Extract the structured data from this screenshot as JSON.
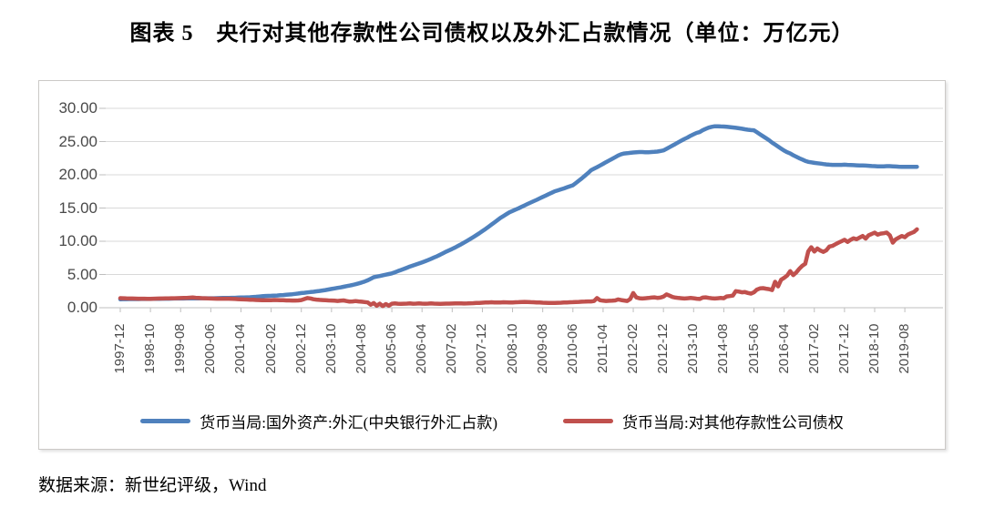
{
  "page": {
    "title": "图表 5　央行对其他存款性公司债权以及外汇占款情况（单位：万亿元）",
    "source": "数据来源：新世纪评级，Wind"
  },
  "chart_data": {
    "type": "line",
    "title": "图表 5　央行对其他存款性公司债权以及外汇占款情况",
    "unit": "万亿元",
    "xlabel": "",
    "ylabel": "",
    "ylim": [
      0,
      30
    ],
    "grid": "horizontal",
    "legend_position": "bottom",
    "x_start": "1997-12",
    "x_interval": "monthly",
    "x_tick_labels": [
      "1997-12",
      "1998-10",
      "1999-08",
      "2000-06",
      "2001-04",
      "2002-02",
      "2002-12",
      "2003-10",
      "2004-08",
      "2005-06",
      "2006-04",
      "2007-02",
      "2007-12",
      "2008-10",
      "2009-08",
      "2010-06",
      "2011-04",
      "2012-02",
      "2012-12",
      "2013-10",
      "2014-08",
      "2015-06",
      "2016-04",
      "2017-02",
      "2017-12",
      "2018-10",
      "2019-08"
    ],
    "y_ticks": [
      {
        "value": 0,
        "label": "0.00"
      },
      {
        "value": 5,
        "label": "5.00"
      },
      {
        "value": 10,
        "label": "10.00"
      },
      {
        "value": 15,
        "label": "15.00"
      },
      {
        "value": 20,
        "label": "20.00"
      },
      {
        "value": 25,
        "label": "25.00"
      },
      {
        "value": 30,
        "label": "30.00"
      }
    ],
    "series": [
      {
        "name": "货币当局:国外资产:外汇(中央银行外汇占款)",
        "color": "#4F81BD",
        "values": [
          1.28,
          1.29,
          1.29,
          1.3,
          1.3,
          1.3,
          1.3,
          1.31,
          1.31,
          1.32,
          1.32,
          1.33,
          1.34,
          1.34,
          1.35,
          1.36,
          1.36,
          1.37,
          1.38,
          1.38,
          1.39,
          1.39,
          1.4,
          1.4,
          1.41,
          1.41,
          1.41,
          1.42,
          1.42,
          1.42,
          1.42,
          1.43,
          1.44,
          1.45,
          1.46,
          1.47,
          1.48,
          1.49,
          1.5,
          1.52,
          1.53,
          1.55,
          1.56,
          1.58,
          1.61,
          1.65,
          1.69,
          1.73,
          1.77,
          1.78,
          1.8,
          1.82,
          1.84,
          1.87,
          1.9,
          1.94,
          1.98,
          2.03,
          2.08,
          2.14,
          2.21,
          2.25,
          2.3,
          2.35,
          2.4,
          2.46,
          2.52,
          2.59,
          2.66,
          2.74,
          2.82,
          2.9,
          2.98,
          3.06,
          3.15,
          3.24,
          3.33,
          3.43,
          3.53,
          3.66,
          3.8,
          3.95,
          4.12,
          4.35,
          4.59,
          4.68,
          4.77,
          4.87,
          4.97,
          5.07,
          5.17,
          5.33,
          5.5,
          5.67,
          5.84,
          6.02,
          6.21,
          6.36,
          6.51,
          6.66,
          6.82,
          6.99,
          7.17,
          7.36,
          7.56,
          7.76,
          7.97,
          8.2,
          8.44,
          8.64,
          8.85,
          9.07,
          9.31,
          9.56,
          9.82,
          10.08,
          10.35,
          10.63,
          10.92,
          11.21,
          11.52,
          11.84,
          12.17,
          12.51,
          12.84,
          13.18,
          13.52,
          13.8,
          14.08,
          14.35,
          14.56,
          14.77,
          14.96,
          15.18,
          15.4,
          15.62,
          15.82,
          16.03,
          16.23,
          16.45,
          16.67,
          16.88,
          17.09,
          17.3,
          17.52,
          17.66,
          17.81,
          17.95,
          18.11,
          18.27,
          18.43,
          18.77,
          19.12,
          19.48,
          19.86,
          20.26,
          20.68,
          20.92,
          21.15,
          21.4,
          21.65,
          21.9,
          22.15,
          22.4,
          22.65,
          22.9,
          23.1,
          23.2,
          23.24,
          23.3,
          23.36,
          23.4,
          23.42,
          23.42,
          23.4,
          23.4,
          23.42,
          23.45,
          23.5,
          23.58,
          23.67,
          23.9,
          24.15,
          24.4,
          24.64,
          24.9,
          25.15,
          25.4,
          25.62,
          25.88,
          26.1,
          26.3,
          26.43,
          26.7,
          26.9,
          27.1,
          27.22,
          27.3,
          27.3,
          27.28,
          27.26,
          27.22,
          27.18,
          27.12,
          27.07,
          27.0,
          26.93,
          26.85,
          26.78,
          26.72,
          26.7,
          26.4,
          26.1,
          25.8,
          25.5,
          25.2,
          24.85,
          24.55,
          24.25,
          23.95,
          23.65,
          23.4,
          23.2,
          22.95,
          22.72,
          22.5,
          22.3,
          22.1,
          21.94,
          21.88,
          21.8,
          21.74,
          21.68,
          21.62,
          21.56,
          21.52,
          21.5,
          21.5,
          21.5,
          21.5,
          21.52,
          21.5,
          21.48,
          21.45,
          21.42,
          21.4,
          21.4,
          21.38,
          21.35,
          21.32,
          21.3,
          21.28,
          21.26,
          21.28,
          21.3,
          21.3,
          21.28,
          21.25,
          21.22,
          21.2,
          21.2,
          21.2,
          21.2,
          21.2,
          21.2
        ]
      },
      {
        "name": "货币当局:对其他存款性公司债权",
        "color": "#C0504D",
        "values": [
          1.44,
          1.42,
          1.4,
          1.39,
          1.38,
          1.37,
          1.36,
          1.35,
          1.35,
          1.34,
          1.34,
          1.35,
          1.37,
          1.38,
          1.39,
          1.4,
          1.41,
          1.42,
          1.43,
          1.44,
          1.45,
          1.46,
          1.48,
          1.51,
          1.54,
          1.5,
          1.47,
          1.44,
          1.42,
          1.4,
          1.38,
          1.37,
          1.36,
          1.35,
          1.35,
          1.35,
          1.35,
          1.33,
          1.31,
          1.29,
          1.27,
          1.25,
          1.23,
          1.21,
          1.19,
          1.17,
          1.15,
          1.14,
          1.13,
          1.12,
          1.14,
          1.16,
          1.15,
          1.13,
          1.12,
          1.1,
          1.09,
          1.08,
          1.08,
          1.1,
          1.15,
          1.3,
          1.45,
          1.4,
          1.28,
          1.22,
          1.18,
          1.15,
          1.12,
          1.1,
          1.08,
          1.05,
          1.02,
          1.05,
          1.1,
          1.0,
          0.92,
          0.95,
          1.0,
          0.95,
          0.9,
          0.85,
          0.8,
          0.45,
          0.7,
          0.3,
          0.6,
          0.25,
          0.55,
          0.3,
          0.6,
          0.65,
          0.6,
          0.58,
          0.6,
          0.62,
          0.64,
          0.6,
          0.62,
          0.64,
          0.62,
          0.6,
          0.62,
          0.64,
          0.62,
          0.6,
          0.58,
          0.6,
          0.62,
          0.62,
          0.63,
          0.65,
          0.66,
          0.65,
          0.63,
          0.65,
          0.67,
          0.69,
          0.71,
          0.73,
          0.76,
          0.78,
          0.8,
          0.82,
          0.8,
          0.78,
          0.8,
          0.82,
          0.81,
          0.79,
          0.8,
          0.82,
          0.84,
          0.86,
          0.88,
          0.86,
          0.84,
          0.82,
          0.8,
          0.78,
          0.76,
          0.74,
          0.72,
          0.71,
          0.72,
          0.74,
          0.76,
          0.78,
          0.8,
          0.82,
          0.84,
          0.86,
          0.88,
          0.9,
          0.92,
          0.94,
          0.95,
          1.0,
          1.45,
          1.12,
          1.05,
          1.02,
          1.04,
          1.06,
          1.1,
          1.25,
          1.15,
          1.08,
          1.02,
          1.3,
          2.2,
          1.55,
          1.42,
          1.38,
          1.42,
          1.46,
          1.52,
          1.56,
          1.48,
          1.52,
          1.67,
          2.0,
          1.82,
          1.62,
          1.52,
          1.46,
          1.42,
          1.38,
          1.42,
          1.46,
          1.42,
          1.36,
          1.31,
          1.52,
          1.56,
          1.48,
          1.42,
          1.38,
          1.42,
          1.46,
          1.42,
          1.7,
          1.76,
          1.82,
          2.5,
          2.42,
          2.32,
          2.36,
          2.22,
          2.12,
          2.32,
          2.72,
          2.9,
          2.95,
          2.86,
          2.8,
          2.66,
          3.9,
          3.2,
          4.2,
          4.5,
          4.85,
          5.5,
          4.9,
          5.3,
          5.85,
          6.3,
          6.6,
          8.47,
          9.1,
          8.45,
          8.9,
          8.6,
          8.4,
          8.65,
          9.2,
          9.3,
          9.55,
          9.8,
          10.0,
          10.22,
          9.9,
          10.2,
          10.45,
          10.3,
          10.55,
          10.8,
          10.4,
          10.9,
          11.1,
          11.3,
          11.0,
          11.15,
          11.2,
          11.3,
          10.9,
          9.8,
          10.3,
          10.55,
          10.8,
          10.6,
          11.0,
          11.2,
          11.4,
          11.8
        ]
      }
    ]
  }
}
